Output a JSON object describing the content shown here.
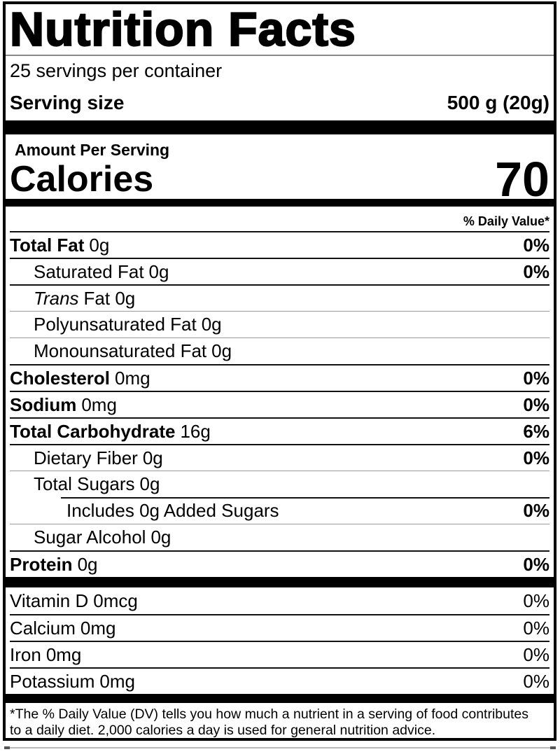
{
  "label": {
    "title": "Nutrition Facts",
    "servings_per_container": "25 servings per container",
    "serving_size_label": "Serving size",
    "serving_size_value": "500 g (20g)",
    "amount_per_serving": "Amount Per Serving",
    "calories_label": "Calories",
    "calories_value": "70",
    "daily_value_header": "% Daily Value*",
    "nutrients": [
      {
        "name": "Total Fat",
        "amount": "0g",
        "pct": "0%"
      },
      {
        "name": "Saturated Fat",
        "amount": "0g",
        "pct": "0%"
      },
      {
        "name": "Trans",
        "amount": "Fat 0g",
        "pct": ""
      },
      {
        "name": "Polyunsaturated Fat",
        "amount": "0g",
        "pct": ""
      },
      {
        "name": "Monounsaturated Fat",
        "amount": "0g",
        "pct": ""
      },
      {
        "name": "Cholesterol",
        "amount": "0mg",
        "pct": "0%"
      },
      {
        "name": "Sodium",
        "amount": "0mg",
        "pct": "0%"
      },
      {
        "name": "Total Carbohydrate",
        "amount": "16g",
        "pct": "6%"
      },
      {
        "name": "Dietary Fiber",
        "amount": "0g",
        "pct": "0%"
      },
      {
        "name": "Total Sugars",
        "amount": "0g",
        "pct": ""
      },
      {
        "name": "Includes 0g Added Sugars",
        "amount": "",
        "pct": "0%"
      },
      {
        "name": "Sugar Alcohol",
        "amount": "0g",
        "pct": ""
      },
      {
        "name": "Protein",
        "amount": "0g",
        "pct": "0%"
      }
    ],
    "vitamins": [
      {
        "name": "Vitamin D",
        "amount": "0mcg",
        "pct": "0%"
      },
      {
        "name": "Calcium",
        "amount": "0mg",
        "pct": "0%"
      },
      {
        "name": "Iron",
        "amount": "0mg",
        "pct": "0%"
      },
      {
        "name": "Potassium",
        "amount": "0mg",
        "pct": "0%"
      }
    ],
    "footnote_lines": [
      "*The % Daily Value (DV) tells you how much a nutrient in a serving of food contributes",
      "to a daily diet. 2,000 calories a day is used for general nutrition advice."
    ]
  },
  "colors": {
    "text": "#000000",
    "title_rule": "#888888",
    "bar": "#000000",
    "light_separator": "#999999"
  }
}
